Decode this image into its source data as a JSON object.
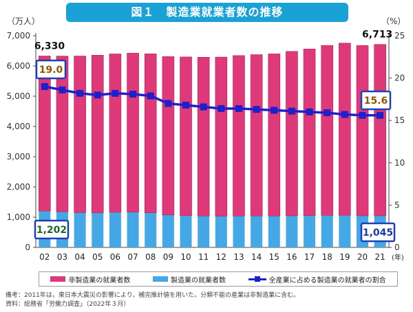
{
  "title": "図１　製造業就業者数の推移",
  "left_unit": "（万人）",
  "right_unit": "（%）",
  "year_unit": "(年)",
  "notes": {
    "line1": "備考：2011年は，東日本大震災の影響により，補完推計値を用いた。分類不能の産業は非製造業に含む。",
    "line2": "資料：総務省「労働力調査」（2022年３月）"
  },
  "colors": {
    "non_manufacturing": "#e0397a",
    "manufacturing": "#45a8e6",
    "ratio_line": "#1f1fcc",
    "title_bg": "#1aa1d6"
  },
  "chart_data": {
    "type": "bar",
    "stacked": true,
    "categories": [
      "02",
      "03",
      "04",
      "05",
      "06",
      "07",
      "08",
      "09",
      "10",
      "11",
      "12",
      "13",
      "14",
      "15",
      "16",
      "17",
      "18",
      "19",
      "20",
      "21"
    ],
    "series": [
      {
        "name": "非製造業の就業者数",
        "values": [
          5128,
          5150,
          5180,
          5215,
          5238,
          5259,
          5258,
          5237,
          5250,
          5250,
          5262,
          5305,
          5335,
          5361,
          5437,
          5510,
          5620,
          5693,
          5634,
          5668
        ]
      },
      {
        "name": "製造業の就業者数",
        "values": [
          1202,
          1178,
          1150,
          1142,
          1161,
          1165,
          1144,
          1073,
          1049,
          1039,
          1032,
          1039,
          1040,
          1039,
          1045,
          1052,
          1060,
          1063,
          1045,
          1045
        ]
      },
      {
        "name": "全産業に占める製造業の就業者の割合",
        "axis": "right",
        "values": [
          19.0,
          18.6,
          18.2,
          18.0,
          18.2,
          18.1,
          17.9,
          17.0,
          16.8,
          16.6,
          16.4,
          16.4,
          16.3,
          16.2,
          16.1,
          16.0,
          15.9,
          15.7,
          15.6,
          15.6
        ]
      }
    ],
    "totals": [
      6330,
      6328,
      6330,
      6357,
      6399,
      6424,
      6402,
      6310,
      6299,
      6289,
      6294,
      6344,
      6375,
      6400,
      6482,
      6562,
      6680,
      6756,
      6679,
      6713
    ],
    "annotations": {
      "total_first": "6,330",
      "total_last": "6,713",
      "ratio_first": "19.0",
      "ratio_last": "15.6",
      "mfg_first": "1,202",
      "mfg_last": "1,045"
    },
    "y_left": {
      "ylim": [
        0,
        7000
      ],
      "ticks": [
        "0",
        "1,000",
        "2,000",
        "3,000",
        "4,000",
        "5,000",
        "6,000",
        "7,000"
      ]
    },
    "y_right": {
      "ylim": [
        0,
        25
      ],
      "ticks": [
        "0",
        "5",
        "10",
        "15",
        "20",
        "25"
      ]
    },
    "grid": false,
    "legend_position": "bottom"
  }
}
